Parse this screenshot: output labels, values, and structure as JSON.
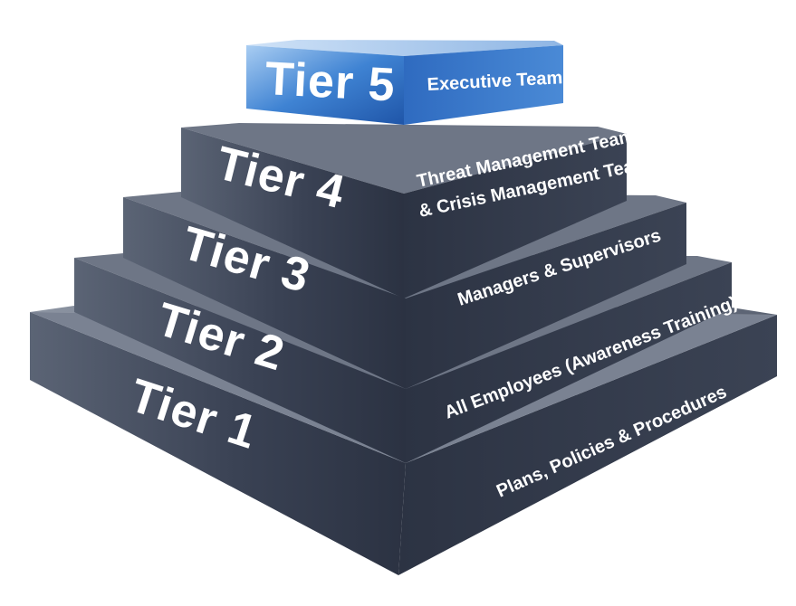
{
  "diagram": {
    "tiers": [
      {
        "id": "tier-1",
        "title": "Tier 1",
        "description_lines": [
          "Plans, Policies & Procedures"
        ],
        "highlight": false
      },
      {
        "id": "tier-2",
        "title": "Tier 2",
        "description_lines": [
          "All Employees (Awareness Training)"
        ],
        "highlight": false
      },
      {
        "id": "tier-3",
        "title": "Tier 3",
        "description_lines": [
          "Managers & Supervisors"
        ],
        "highlight": false
      },
      {
        "id": "tier-4",
        "title": "Tier 4",
        "description_lines": [
          "Threat Management Team",
          "& Crisis Management Team"
        ],
        "highlight": false
      },
      {
        "id": "tier-5",
        "title": "Tier 5",
        "description_lines": [
          "Executive Team"
        ],
        "highlight": true
      }
    ],
    "colors": {
      "slab_front": "#353d4e",
      "slab_top": "#5a6373",
      "slab_side": "#2a3140",
      "top_accent": "#2f6fc4",
      "top_accent_light": "#9ec4ef",
      "text": "#ffffff"
    }
  }
}
